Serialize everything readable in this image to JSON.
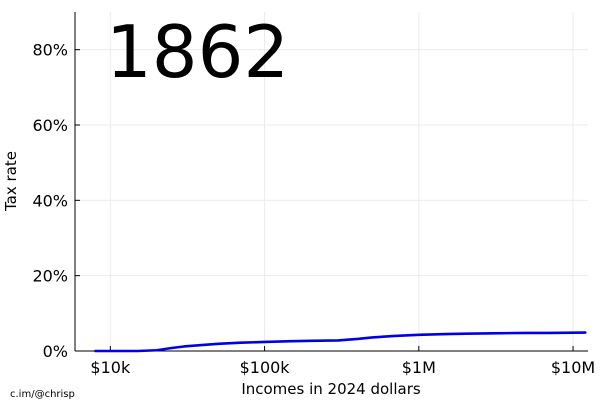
{
  "chart_data": {
    "type": "line",
    "title": "1862",
    "xlabel": "Incomes in 2024 dollars",
    "ylabel": "Tax rate",
    "x_scale": "log",
    "xlim": [
      5900,
      12500000
    ],
    "ylim": [
      0,
      0.9
    ],
    "x_ticks": [
      {
        "value": 10000,
        "label": "$10k"
      },
      {
        "value": 100000,
        "label": "$100k"
      },
      {
        "value": 1000000,
        "label": "$1M"
      },
      {
        "value": 10000000,
        "label": "$10M"
      }
    ],
    "y_ticks": [
      {
        "value": 0.0,
        "label": "0%"
      },
      {
        "value": 0.2,
        "label": "20%"
      },
      {
        "value": 0.4,
        "label": "40%"
      },
      {
        "value": 0.6,
        "label": "60%"
      },
      {
        "value": 0.8,
        "label": "80%"
      }
    ],
    "grid": true,
    "legend": "none",
    "series": [
      {
        "color": "#0000e6",
        "x": [
          8000,
          10000,
          15000,
          20000,
          25000,
          30000,
          40000,
          50000,
          70000,
          100000,
          150000,
          200000,
          300000,
          400000,
          500000,
          700000,
          1000000,
          1500000,
          2000000,
          3000000,
          5000000,
          7000000,
          10000000,
          12000000
        ],
        "y": [
          0.0,
          0.0,
          0.0,
          0.002,
          0.008,
          0.012,
          0.016,
          0.019,
          0.022,
          0.024,
          0.026,
          0.027,
          0.028,
          0.032,
          0.036,
          0.04,
          0.043,
          0.045,
          0.046,
          0.047,
          0.048,
          0.048,
          0.0485,
          0.049
        ]
      }
    ]
  },
  "credit": "c.im/@chrisp"
}
